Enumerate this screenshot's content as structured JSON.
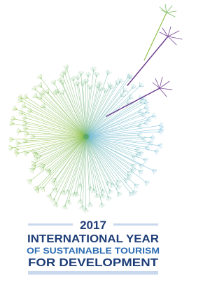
{
  "logo": {
    "year": "2017",
    "lines": [
      "INTERNATIONAL YEAR",
      "OF SUSTAINABLE TOURISM",
      "FOR DEVELOPMENT"
    ]
  }
}
